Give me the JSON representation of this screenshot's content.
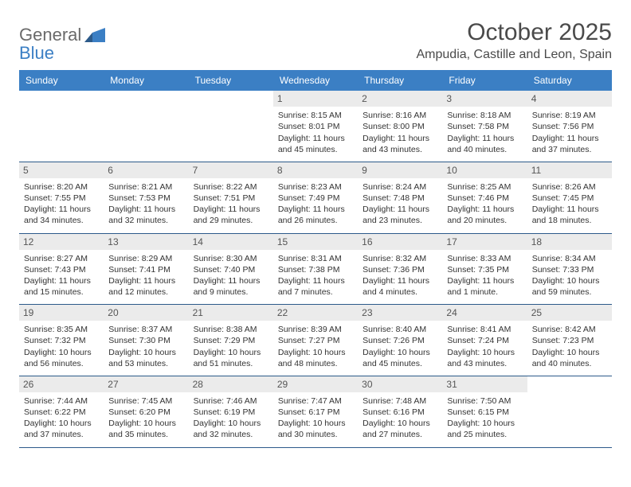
{
  "logo": {
    "line1": "General",
    "line2": "Blue"
  },
  "title": {
    "month": "October 2025",
    "location": "Ampudia, Castille and Leon, Spain"
  },
  "colors": {
    "header_bg": "#3b7fc4",
    "daynum_bg": "#ebebeb",
    "week_border": "#2c5a8a",
    "text": "#333333",
    "logo_gray": "#6a6a6a"
  },
  "weekdays": [
    "Sunday",
    "Monday",
    "Tuesday",
    "Wednesday",
    "Thursday",
    "Friday",
    "Saturday"
  ],
  "weeks": [
    [
      null,
      null,
      null,
      {
        "n": "1",
        "sunrise": "Sunrise: 8:15 AM",
        "sunset": "Sunset: 8:01 PM",
        "d1": "Daylight: 11 hours",
        "d2": "and 45 minutes."
      },
      {
        "n": "2",
        "sunrise": "Sunrise: 8:16 AM",
        "sunset": "Sunset: 8:00 PM",
        "d1": "Daylight: 11 hours",
        "d2": "and 43 minutes."
      },
      {
        "n": "3",
        "sunrise": "Sunrise: 8:18 AM",
        "sunset": "Sunset: 7:58 PM",
        "d1": "Daylight: 11 hours",
        "d2": "and 40 minutes."
      },
      {
        "n": "4",
        "sunrise": "Sunrise: 8:19 AM",
        "sunset": "Sunset: 7:56 PM",
        "d1": "Daylight: 11 hours",
        "d2": "and 37 minutes."
      }
    ],
    [
      {
        "n": "5",
        "sunrise": "Sunrise: 8:20 AM",
        "sunset": "Sunset: 7:55 PM",
        "d1": "Daylight: 11 hours",
        "d2": "and 34 minutes."
      },
      {
        "n": "6",
        "sunrise": "Sunrise: 8:21 AM",
        "sunset": "Sunset: 7:53 PM",
        "d1": "Daylight: 11 hours",
        "d2": "and 32 minutes."
      },
      {
        "n": "7",
        "sunrise": "Sunrise: 8:22 AM",
        "sunset": "Sunset: 7:51 PM",
        "d1": "Daylight: 11 hours",
        "d2": "and 29 minutes."
      },
      {
        "n": "8",
        "sunrise": "Sunrise: 8:23 AM",
        "sunset": "Sunset: 7:49 PM",
        "d1": "Daylight: 11 hours",
        "d2": "and 26 minutes."
      },
      {
        "n": "9",
        "sunrise": "Sunrise: 8:24 AM",
        "sunset": "Sunset: 7:48 PM",
        "d1": "Daylight: 11 hours",
        "d2": "and 23 minutes."
      },
      {
        "n": "10",
        "sunrise": "Sunrise: 8:25 AM",
        "sunset": "Sunset: 7:46 PM",
        "d1": "Daylight: 11 hours",
        "d2": "and 20 minutes."
      },
      {
        "n": "11",
        "sunrise": "Sunrise: 8:26 AM",
        "sunset": "Sunset: 7:45 PM",
        "d1": "Daylight: 11 hours",
        "d2": "and 18 minutes."
      }
    ],
    [
      {
        "n": "12",
        "sunrise": "Sunrise: 8:27 AM",
        "sunset": "Sunset: 7:43 PM",
        "d1": "Daylight: 11 hours",
        "d2": "and 15 minutes."
      },
      {
        "n": "13",
        "sunrise": "Sunrise: 8:29 AM",
        "sunset": "Sunset: 7:41 PM",
        "d1": "Daylight: 11 hours",
        "d2": "and 12 minutes."
      },
      {
        "n": "14",
        "sunrise": "Sunrise: 8:30 AM",
        "sunset": "Sunset: 7:40 PM",
        "d1": "Daylight: 11 hours",
        "d2": "and 9 minutes."
      },
      {
        "n": "15",
        "sunrise": "Sunrise: 8:31 AM",
        "sunset": "Sunset: 7:38 PM",
        "d1": "Daylight: 11 hours",
        "d2": "and 7 minutes."
      },
      {
        "n": "16",
        "sunrise": "Sunrise: 8:32 AM",
        "sunset": "Sunset: 7:36 PM",
        "d1": "Daylight: 11 hours",
        "d2": "and 4 minutes."
      },
      {
        "n": "17",
        "sunrise": "Sunrise: 8:33 AM",
        "sunset": "Sunset: 7:35 PM",
        "d1": "Daylight: 11 hours",
        "d2": "and 1 minute."
      },
      {
        "n": "18",
        "sunrise": "Sunrise: 8:34 AM",
        "sunset": "Sunset: 7:33 PM",
        "d1": "Daylight: 10 hours",
        "d2": "and 59 minutes."
      }
    ],
    [
      {
        "n": "19",
        "sunrise": "Sunrise: 8:35 AM",
        "sunset": "Sunset: 7:32 PM",
        "d1": "Daylight: 10 hours",
        "d2": "and 56 minutes."
      },
      {
        "n": "20",
        "sunrise": "Sunrise: 8:37 AM",
        "sunset": "Sunset: 7:30 PM",
        "d1": "Daylight: 10 hours",
        "d2": "and 53 minutes."
      },
      {
        "n": "21",
        "sunrise": "Sunrise: 8:38 AM",
        "sunset": "Sunset: 7:29 PM",
        "d1": "Daylight: 10 hours",
        "d2": "and 51 minutes."
      },
      {
        "n": "22",
        "sunrise": "Sunrise: 8:39 AM",
        "sunset": "Sunset: 7:27 PM",
        "d1": "Daylight: 10 hours",
        "d2": "and 48 minutes."
      },
      {
        "n": "23",
        "sunrise": "Sunrise: 8:40 AM",
        "sunset": "Sunset: 7:26 PM",
        "d1": "Daylight: 10 hours",
        "d2": "and 45 minutes."
      },
      {
        "n": "24",
        "sunrise": "Sunrise: 8:41 AM",
        "sunset": "Sunset: 7:24 PM",
        "d1": "Daylight: 10 hours",
        "d2": "and 43 minutes."
      },
      {
        "n": "25",
        "sunrise": "Sunrise: 8:42 AM",
        "sunset": "Sunset: 7:23 PM",
        "d1": "Daylight: 10 hours",
        "d2": "and 40 minutes."
      }
    ],
    [
      {
        "n": "26",
        "sunrise": "Sunrise: 7:44 AM",
        "sunset": "Sunset: 6:22 PM",
        "d1": "Daylight: 10 hours",
        "d2": "and 37 minutes."
      },
      {
        "n": "27",
        "sunrise": "Sunrise: 7:45 AM",
        "sunset": "Sunset: 6:20 PM",
        "d1": "Daylight: 10 hours",
        "d2": "and 35 minutes."
      },
      {
        "n": "28",
        "sunrise": "Sunrise: 7:46 AM",
        "sunset": "Sunset: 6:19 PM",
        "d1": "Daylight: 10 hours",
        "d2": "and 32 minutes."
      },
      {
        "n": "29",
        "sunrise": "Sunrise: 7:47 AM",
        "sunset": "Sunset: 6:17 PM",
        "d1": "Daylight: 10 hours",
        "d2": "and 30 minutes."
      },
      {
        "n": "30",
        "sunrise": "Sunrise: 7:48 AM",
        "sunset": "Sunset: 6:16 PM",
        "d1": "Daylight: 10 hours",
        "d2": "and 27 minutes."
      },
      {
        "n": "31",
        "sunrise": "Sunrise: 7:50 AM",
        "sunset": "Sunset: 6:15 PM",
        "d1": "Daylight: 10 hours",
        "d2": "and 25 minutes."
      },
      null
    ]
  ]
}
